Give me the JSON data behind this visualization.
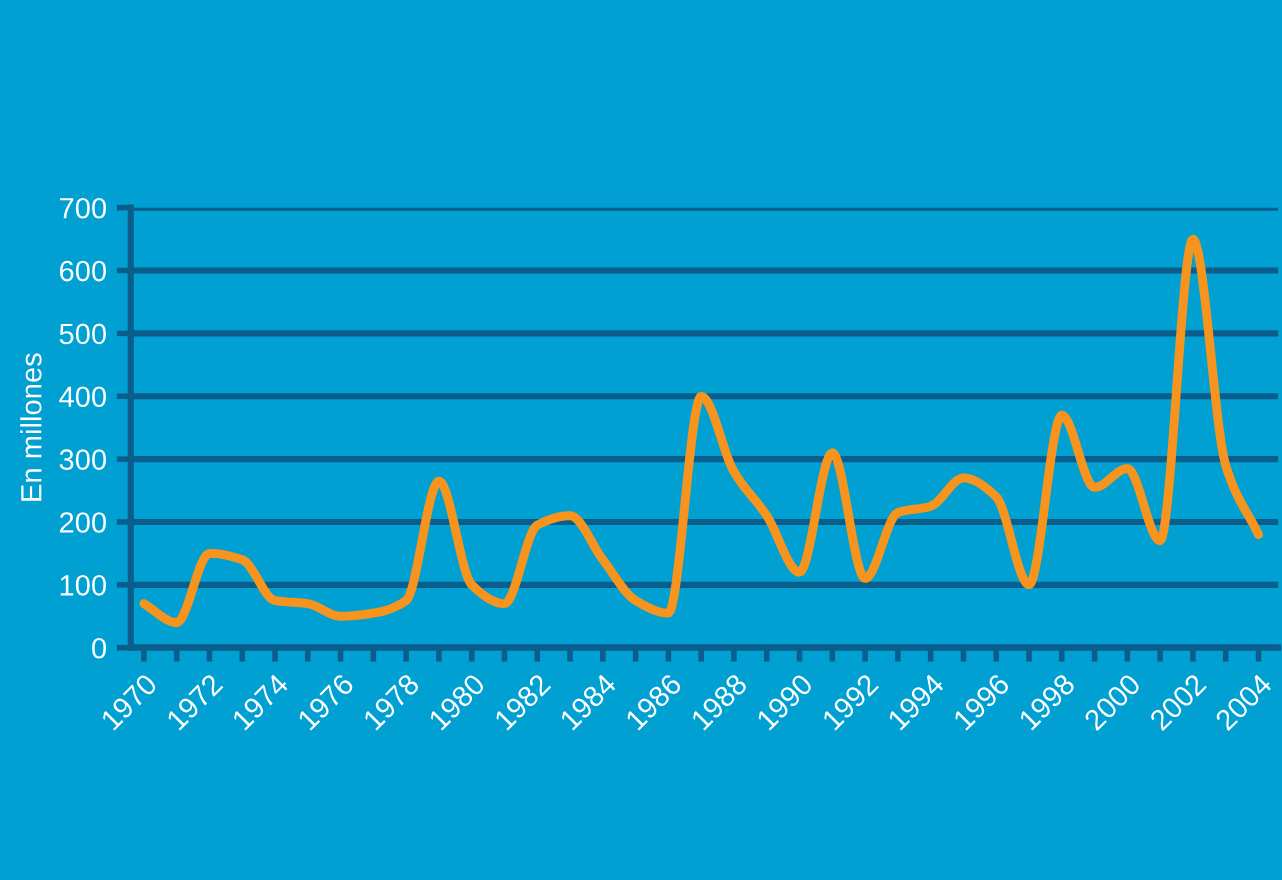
{
  "chart_data": {
    "type": "line",
    "ylabel": "En millones",
    "x": [
      1970,
      1971,
      1972,
      1973,
      1974,
      1975,
      1976,
      1977,
      1978,
      1979,
      1980,
      1981,
      1982,
      1983,
      1984,
      1985,
      1986,
      1987,
      1988,
      1989,
      1990,
      1991,
      1992,
      1993,
      1994,
      1995,
      1996,
      1997,
      1998,
      1999,
      2000,
      2001,
      2002,
      2003,
      2004
    ],
    "series": [
      {
        "color": "#f7941d",
        "values": [
          70,
          40,
          150,
          140,
          75,
          70,
          50,
          55,
          75,
          265,
          100,
          70,
          195,
          210,
          140,
          75,
          55,
          400,
          280,
          210,
          120,
          310,
          110,
          215,
          225,
          270,
          240,
          100,
          370,
          255,
          285,
          170,
          650,
          290,
          180
        ]
      }
    ],
    "xlim": [
      1969.6,
      2004.6
    ],
    "xticks": [
      1970,
      {
        "value": 1971,
        "label": null
      },
      1972,
      {
        "value": 1973,
        "label": null
      },
      1974,
      {
        "value": 1975,
        "label": null
      },
      1976,
      {
        "value": 1977,
        "label": null
      },
      1978,
      {
        "value": 1979,
        "label": null
      },
      1980,
      {
        "value": 1981,
        "label": null
      },
      1982,
      {
        "value": 1983,
        "label": null
      },
      1984,
      {
        "value": 1985,
        "label": null
      },
      1986,
      {
        "value": 1987,
        "label": null
      },
      1988,
      {
        "value": 1989,
        "label": null
      },
      1990,
      {
        "value": 1991,
        "label": null
      },
      1992,
      {
        "value": 1993,
        "label": null
      },
      1994,
      {
        "value": 1995,
        "label": null
      },
      1996,
      {
        "value": 1997,
        "label": null
      },
      1998,
      {
        "value": 1999,
        "label": null
      },
      2000,
      {
        "value": 2001,
        "label": null
      },
      2002,
      {
        "value": 2003,
        "label": null
      },
      2004
    ],
    "ylim": [
      0,
      700
    ],
    "yticks": [
      0,
      100,
      200,
      300,
      400,
      500,
      600,
      700
    ],
    "grid": "y",
    "legend": false,
    "marker": "none",
    "line_style": "solid"
  }
}
